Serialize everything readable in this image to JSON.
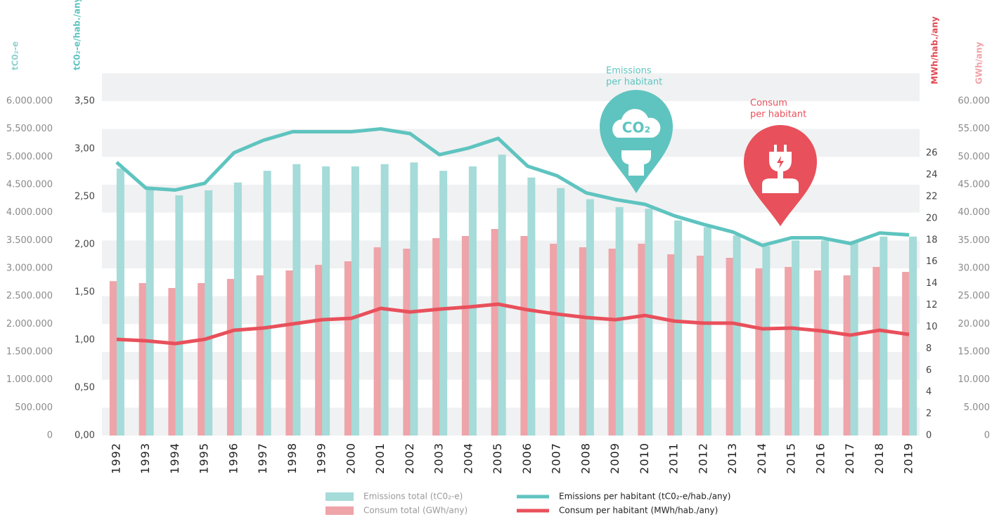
{
  "chart_data": {
    "type": "bar",
    "ylabel": "tC0₂-e",
    "y2label": "tC0₂-e/hab./any",
    "y3label": "MWh/hab./any",
    "y4label": "GWh/any",
    "categories": [
      "1992",
      "1993",
      "1994",
      "1995",
      "1996",
      "1997",
      "1998",
      "1999",
      "2000",
      "2001",
      "2002",
      "2003",
      "2004",
      "2005",
      "2006",
      "2007",
      "2008",
      "2009",
      "2010",
      "2011",
      "2012",
      "2013",
      "2014",
      "2015",
      "2016",
      "2017",
      "2018",
      "2019"
    ],
    "ylim": [
      0,
      6000000
    ],
    "yticks": [
      0,
      {
        "value": 500000,
        "label": "500.000"
      },
      {
        "value": 1000000,
        "label": "1.000.000"
      },
      {
        "value": 1500000,
        "label": "1.500.000"
      },
      {
        "value": 2000000,
        "label": "2.000.000"
      },
      {
        "value": 2500000,
        "label": "2.500.000"
      },
      {
        "value": 3000000,
        "label": "3.000.000"
      },
      {
        "value": 3500000,
        "label": "3.500.000"
      },
      {
        "value": 4000000,
        "label": "4.000.000"
      },
      {
        "value": 4500000,
        "label": "4.500.000"
      },
      {
        "value": 5000000,
        "label": "5.000.000"
      },
      {
        "value": 5500000,
        "label": "5.500.000"
      },
      {
        "value": 6000000,
        "label": "6.000.000"
      }
    ],
    "y2lim": [
      0,
      3.5
    ],
    "y2ticks": [
      {
        "value": 0,
        "label": "0,00"
      },
      {
        "value": 0.5,
        "label": "0,50"
      },
      {
        "value": 1,
        "label": "1,00"
      },
      {
        "value": 1.5,
        "label": "1,50"
      },
      {
        "value": 2,
        "label": "2,00"
      },
      {
        "value": 2.5,
        "label": "2,50"
      },
      {
        "value": 3,
        "label": "3,00"
      },
      {
        "value": 3.5,
        "label": "3,50"
      }
    ],
    "y3lim": [
      0,
      30.8
    ],
    "y3ticks": [
      0,
      2,
      4,
      6,
      8,
      10,
      12,
      14,
      16,
      18,
      20,
      22,
      24,
      26
    ],
    "y4lim": [
      0,
      60000
    ],
    "y4ticks": [
      0,
      {
        "value": 5000,
        "label": "5.000"
      },
      {
        "value": 10000,
        "label": "10.000"
      },
      {
        "value": 15000,
        "label": "15.000"
      },
      {
        "value": 20000,
        "label": "20.000"
      },
      {
        "value": 25000,
        "label": "25.000"
      },
      {
        "value": 30000,
        "label": "30.000"
      },
      {
        "value": 35000,
        "label": "35.000"
      },
      {
        "value": 40000,
        "label": "40.000"
      },
      {
        "value": 45000,
        "label": "45.000"
      },
      {
        "value": 50000,
        "label": "50.000"
      },
      {
        "value": 55000,
        "label": "55.000"
      },
      {
        "value": 60000,
        "label": "60.000"
      }
    ],
    "grid": true,
    "series": [
      {
        "name": "Consum total (GWh/any)",
        "type": "bar",
        "axis": "y4",
        "color": "#eea4a9",
        "values": [
          27700,
          27350,
          26470,
          27350,
          28100,
          28740,
          29620,
          30630,
          31260,
          33780,
          33530,
          35420,
          35800,
          37060,
          35800,
          34410,
          33780,
          33530,
          34410,
          32520,
          32270,
          31890,
          30000,
          30250,
          29620,
          28740,
          30250,
          29370
        ]
      },
      {
        "name": "Emissions total (tC0₂-e)",
        "type": "bar",
        "axis": "y",
        "color": "#a5dbd8",
        "values": [
          4790000,
          4410000,
          4310000,
          4400000,
          4540000,
          4750000,
          4870000,
          4830000,
          4830000,
          4870000,
          4900000,
          4750000,
          4830000,
          5040000,
          4630000,
          4440000,
          4240000,
          4100000,
          4070000,
          3860000,
          3740000,
          3590000,
          3400000,
          3500000,
          3500000,
          3470000,
          3570000,
          3570000
        ]
      },
      {
        "name": "Emissions per habitant (tC0₂-e/hab./any)",
        "type": "line",
        "axis": "y2",
        "color": "#5fc4c0",
        "values": [
          2.86,
          2.59,
          2.57,
          2.64,
          2.96,
          3.09,
          3.18,
          3.18,
          3.18,
          3.21,
          3.16,
          2.94,
          3.01,
          3.11,
          2.82,
          2.72,
          2.54,
          2.47,
          2.42,
          2.3,
          2.21,
          2.13,
          1.99,
          2.07,
          2.07,
          2.01,
          2.12,
          2.1
        ]
      },
      {
        "name": "Consum per habitant (MWh/hab./any)",
        "type": "line",
        "axis": "y3",
        "color": "#e8505b",
        "values": [
          8.86,
          8.73,
          8.47,
          8.86,
          9.7,
          9.9,
          10.28,
          10.67,
          10.8,
          11.71,
          11.38,
          11.64,
          11.84,
          12.1,
          11.58,
          11.19,
          10.87,
          10.67,
          11.06,
          10.54,
          10.35,
          10.35,
          9.83,
          9.9,
          9.64,
          9.25,
          9.7,
          9.31
        ]
      }
    ],
    "annotations": [
      {
        "lines": [
          "Emissions",
          "per habitant"
        ],
        "icon_text": "CO₂",
        "color": "#5fc4c0"
      },
      {
        "lines": [
          "Consum",
          "per habitant"
        ],
        "color": "#e8505b"
      }
    ]
  }
}
